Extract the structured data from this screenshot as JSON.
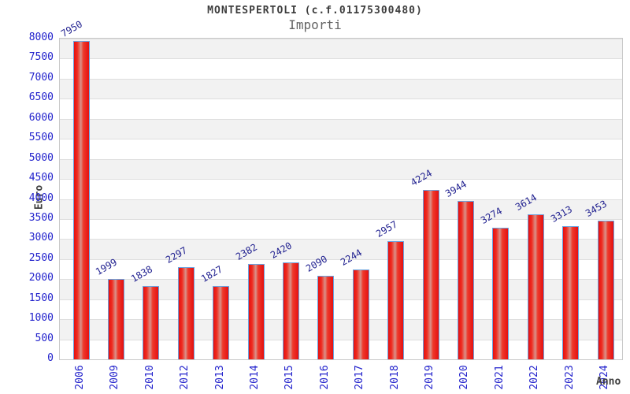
{
  "header": {
    "title": "MONTESPERTOLI (c.f.01175300480)",
    "subtitle": "Importi"
  },
  "chart_data": {
    "type": "bar",
    "title": "MONTESPERTOLI (c.f.01175300480)",
    "subtitle": "Importi",
    "xlabel": "Anno",
    "ylabel": "Euro",
    "categories": [
      "2006",
      "2009",
      "2010",
      "2012",
      "2013",
      "2014",
      "2015",
      "2016",
      "2017",
      "2018",
      "2019",
      "2020",
      "2021",
      "2022",
      "2023",
      "2024"
    ],
    "values": [
      7950,
      1999,
      1838,
      2297,
      1827,
      2382,
      2420,
      2090,
      2244,
      2957,
      4224,
      3944,
      3274,
      3614,
      3313,
      3453
    ],
    "ylim": [
      0,
      8000
    ],
    "ytick_step": 500,
    "grid": "banded-horizontal",
    "legend": "none",
    "colors": {
      "bar_fill": "#ed1212",
      "bar_fill_highlight": "#d9928a",
      "bar_border": "#6aa3e0",
      "axis_tick_label": "#2222cc",
      "value_label": "#1f1f8f",
      "axis_title": "#3f3f3f",
      "band_gray": "#f2f2f2",
      "band_white": "#ffffff",
      "grid_line": "#d9d9d9"
    }
  }
}
